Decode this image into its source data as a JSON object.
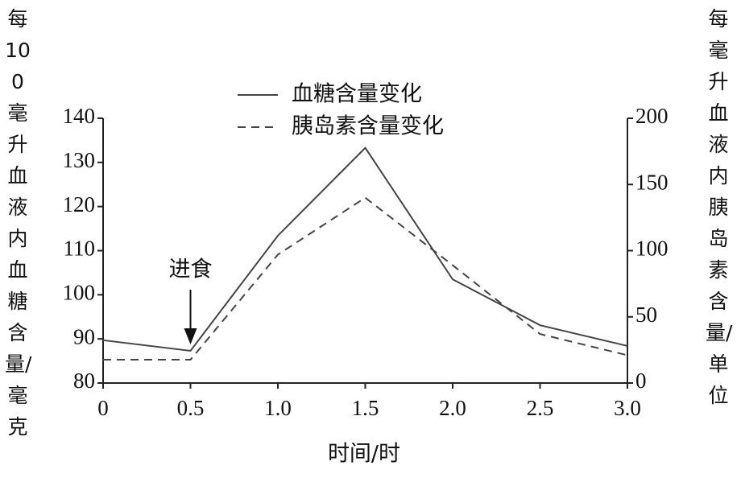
{
  "chart_data": {
    "type": "line",
    "x": [
      0,
      0.5,
      1,
      1.5,
      2,
      2.5,
      3
    ],
    "xlim": [
      0,
      3
    ],
    "xticks": [
      0,
      0.5,
      {
        "value": 1,
        "label": "1.0"
      },
      1.5,
      {
        "value": 2,
        "label": "2.0"
      },
      2.5,
      {
        "value": 3,
        "label": "3.0"
      }
    ],
    "xlabel": "时间/时",
    "ylabel": "每100毫升血液内血糖含量/毫克",
    "y2label": "每毫升血液内胰岛素含量/单位",
    "ylim": [
      80,
      140
    ],
    "yticks": [
      80,
      90,
      100,
      110,
      120,
      130,
      140
    ],
    "y2lim": [
      0,
      200
    ],
    "y2ticks": [
      0,
      50,
      100,
      150,
      200
    ],
    "series": [
      {
        "name": "血糖含量变化",
        "color": "#444444",
        "dash": false,
        "values": [
          89.7,
          87.3,
          113.4,
          133.3,
          103.5,
          93.1,
          88.4
        ]
      },
      {
        "name": "胰岛素含量变化",
        "color": "#444444",
        "dash": true,
        "axis": "y2",
        "values": [
          17.6,
          17.6,
          97,
          140,
          89,
          37,
          21
        ]
      }
    ],
    "annotation": {
      "text": "进食",
      "x": 0.5
    }
  }
}
